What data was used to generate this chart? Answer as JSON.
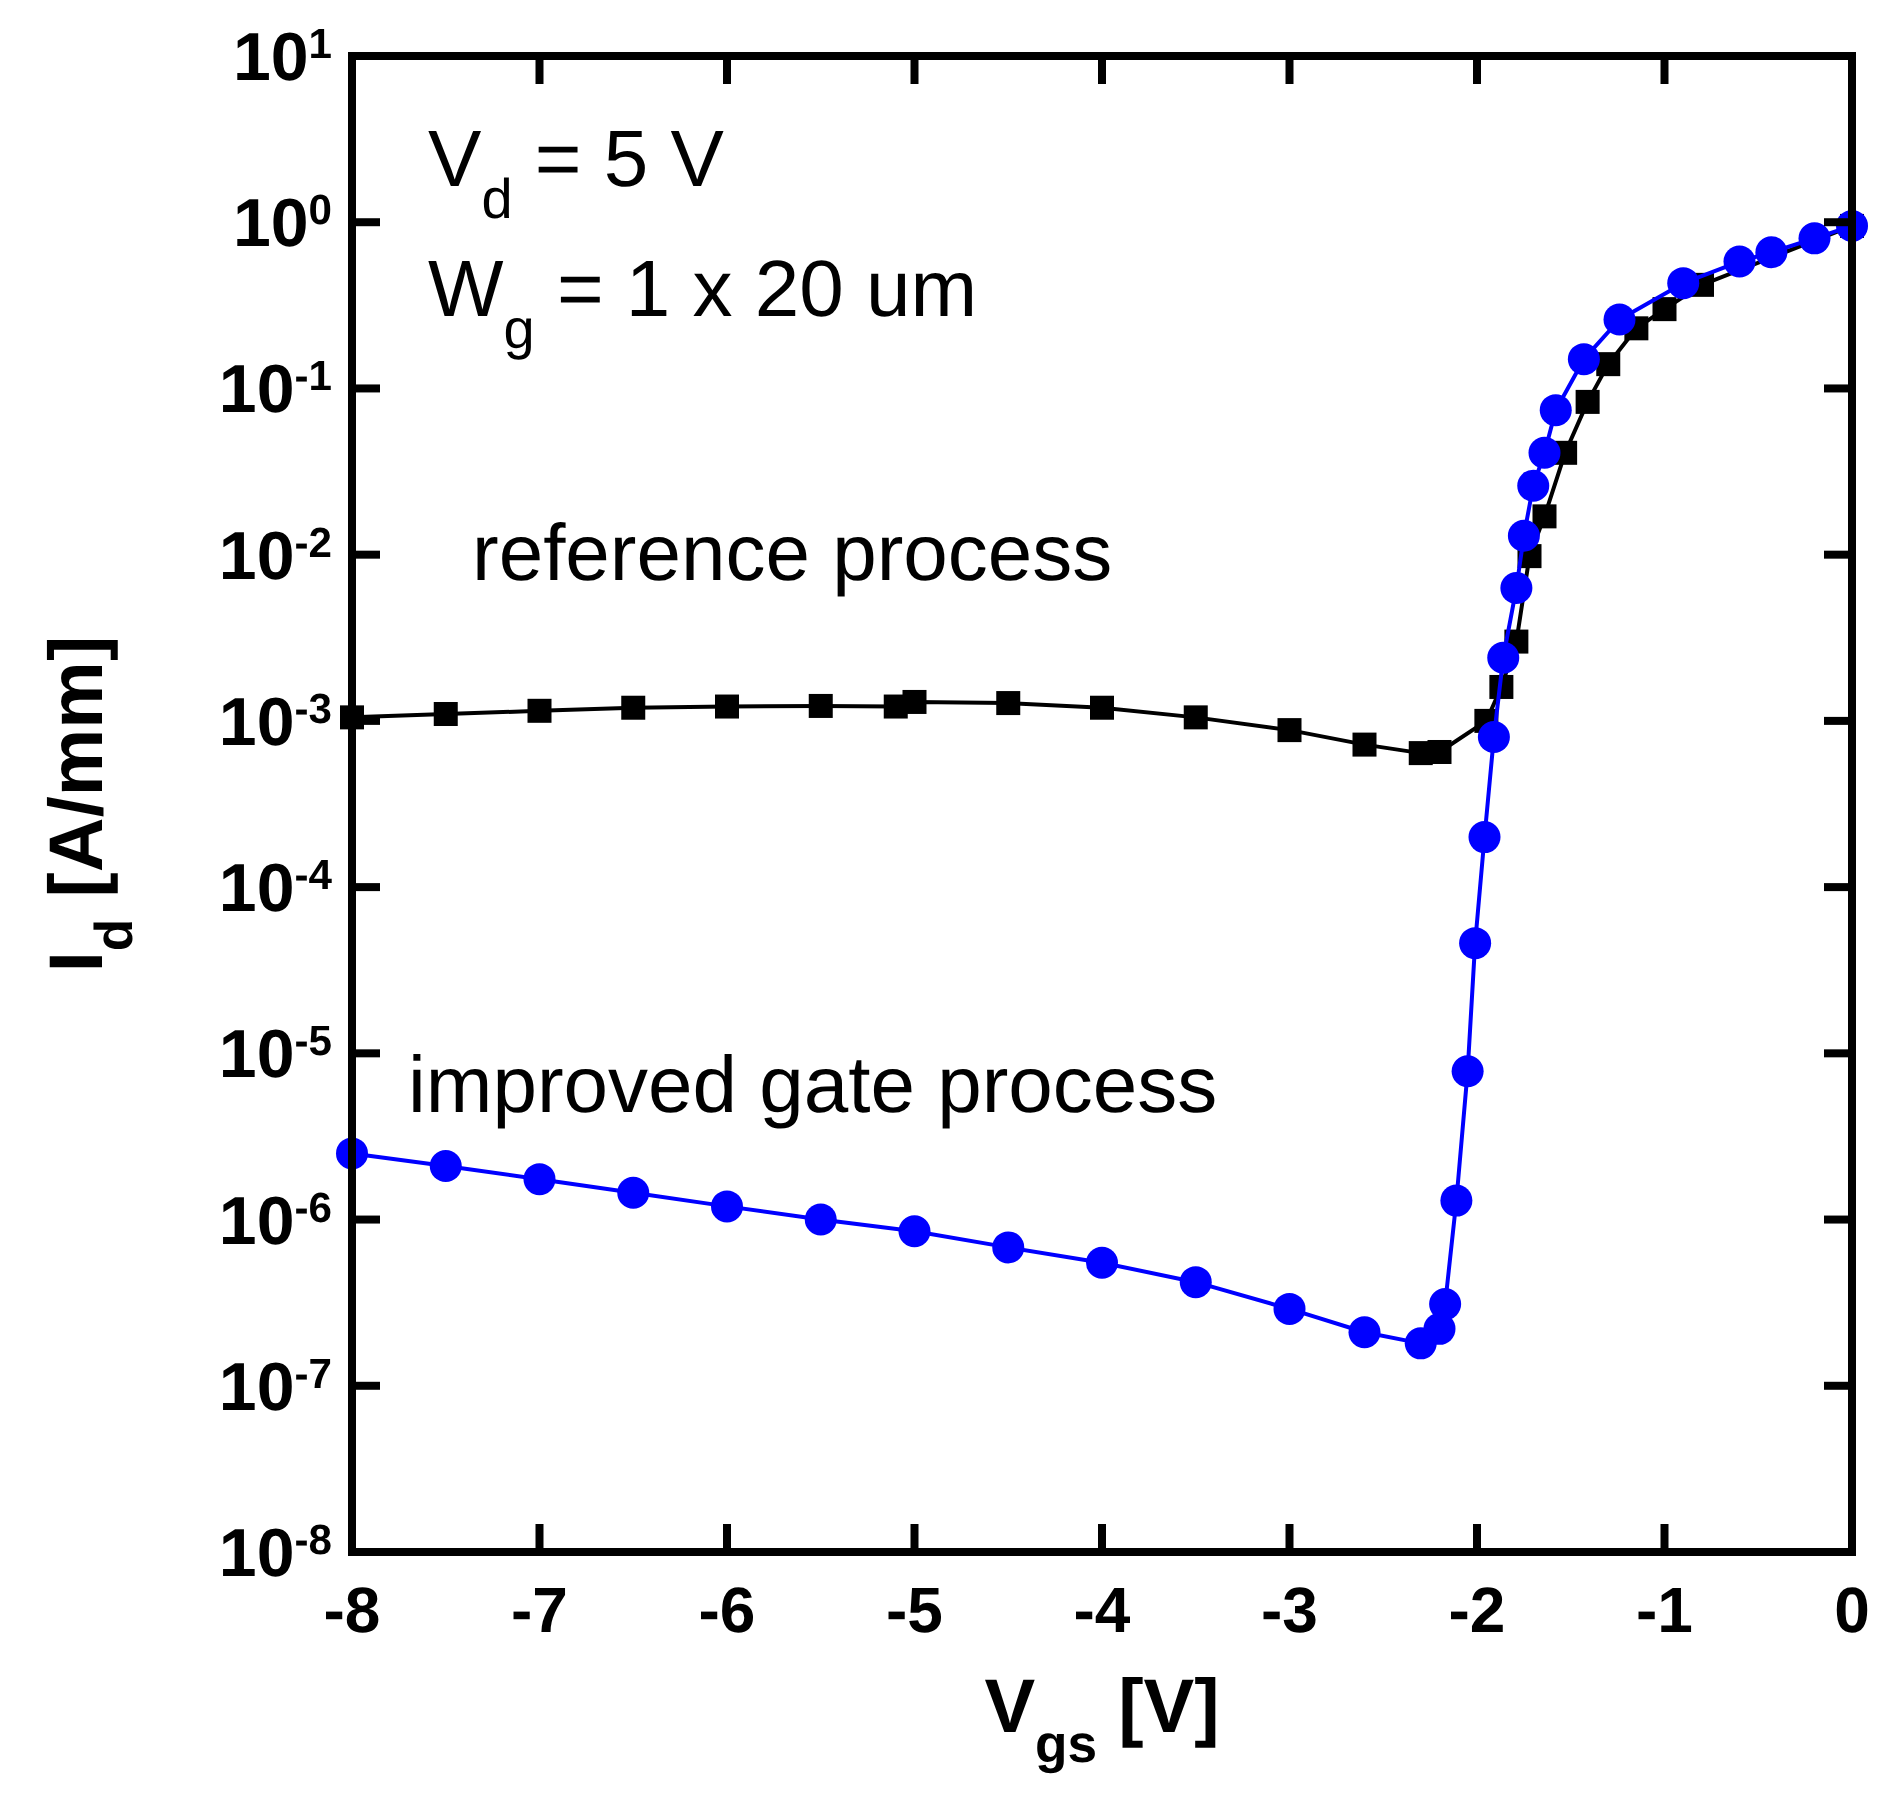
{
  "chart_data": {
    "type": "line",
    "xlabel": "V$_{gs}$ [V]",
    "ylabel": "I$_{d}$ [A/mm]",
    "log": "y",
    "xlim": [
      -8,
      0
    ],
    "xticks": [
      -8,
      -7,
      -6,
      -5,
      -4,
      -3,
      -2,
      -1,
      0
    ],
    "ylim": [
      1e-08,
      10
    ],
    "yticks": [
      {
        "value": 1e-08,
        "label": "10$^{-8}$"
      },
      {
        "value": 1e-07,
        "label": "10$^{-7}$"
      },
      {
        "value": 1e-06,
        "label": "10$^{-6}$"
      },
      {
        "value": 1e-05,
        "label": "10$^{-5}$"
      },
      {
        "value": 0.0001,
        "label": "10$^{-4}$"
      },
      {
        "value": 0.001,
        "label": "10$^{-3}$"
      },
      {
        "value": 0.01,
        "label": "10$^{-2}$"
      },
      {
        "value": 0.1,
        "label": "10$^{-1}$"
      },
      {
        "value": 1,
        "label": "10$^{0}$"
      },
      {
        "value": 10,
        "label": "10$^{1}$"
      }
    ],
    "annotations": [
      "V$_{d}$  = 5 V",
      "W$_{g}$ = 1 x 20 um"
    ],
    "series": [
      {
        "name": "reference process",
        "color": "#000000",
        "marker": "square",
        "x": [
          -8,
          -7.5,
          -7,
          -6.5,
          -6,
          -5.5,
          -5.1,
          -5,
          -4.5,
          -4,
          -3.5,
          -3,
          -2.6,
          -2.3,
          -2.2,
          -1.95,
          -1.87,
          -1.79,
          -1.72,
          -1.64,
          -1.53,
          -1.41,
          -1.3,
          -1.15,
          -1,
          -0.8,
          -0.6,
          -0.4,
          -0.2,
          0
        ],
        "values": [
          0.00105,
          0.0011,
          0.00115,
          0.0012,
          0.00122,
          0.00123,
          0.00122,
          0.0013,
          0.00128,
          0.0012,
          0.00105,
          0.00088,
          0.00072,
          0.00064,
          0.00065,
          0.001,
          0.0016,
          0.003,
          0.0098,
          0.017,
          0.041,
          0.083,
          0.14,
          0.23,
          0.3,
          0.42,
          null,
          null,
          null,
          0.95
        ]
      },
      {
        "name": "improved gate process",
        "color": "#0000ff",
        "marker": "circle",
        "x": [
          -8,
          -7.5,
          -7,
          -6.5,
          -6,
          -5.5,
          -5,
          -4.5,
          -4,
          -3.5,
          -3,
          -2.6,
          -2.3,
          -2.2,
          -2.17,
          -2.11,
          -2.05,
          -2.01,
          -1.96,
          -1.91,
          -1.86,
          -1.79,
          -1.75,
          -1.7,
          -1.64,
          -1.58,
          -1.43,
          -1.24,
          -0.9,
          -0.6,
          -0.43,
          -0.2,
          0
        ],
        "values": [
          2.5e-06,
          2.1e-06,
          1.75e-06,
          1.45e-06,
          1.2e-06,
          1e-06,
          8.5e-07,
          6.8e-07,
          5.5e-07,
          4.2e-07,
          2.9e-07,
          2.1e-07,
          1.8e-07,
          2.2e-07,
          3.1e-07,
          1.3e-06,
          7.8e-06,
          4.6e-05,
          0.0002,
          0.0008,
          0.0024,
          0.0063,
          0.013,
          0.026,
          0.041,
          0.074,
          0.15,
          0.26,
          0.43,
          0.58,
          0.66,
          0.8,
          0.95
        ]
      }
    ]
  }
}
